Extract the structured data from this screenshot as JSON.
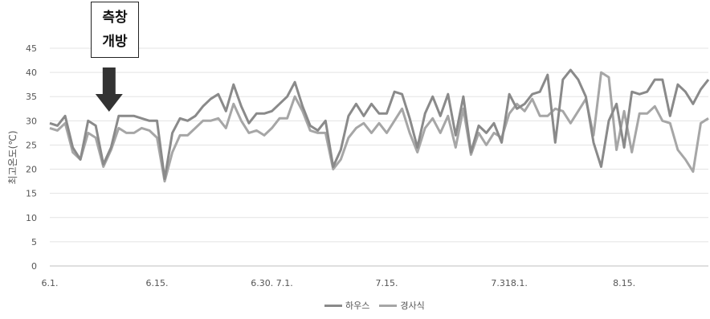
{
  "chart_data": {
    "type": "line",
    "title": "",
    "xlabel": "",
    "ylabel": "최고온도(℃)",
    "ylim": [
      0,
      45
    ],
    "yticks": [
      0,
      5,
      10,
      15,
      20,
      25,
      30,
      35,
      40,
      45
    ],
    "grid": true,
    "legend_position": "bottom",
    "x_tick_labels": [
      {
        "index": 0,
        "label": "6.1."
      },
      {
        "index": 14,
        "label": "6.15."
      },
      {
        "index": 29,
        "label": "6.30. 7.1."
      },
      {
        "index": 44,
        "label": "7.15."
      },
      {
        "index": 60,
        "label": "7.318.1."
      },
      {
        "index": 75,
        "label": "8.15."
      }
    ],
    "series": [
      {
        "name": "하우스",
        "color": "#8a8a8a",
        "values": [
          29.5,
          29,
          31,
          24.5,
          22,
          30,
          29,
          21,
          24.5,
          31,
          31,
          31,
          30.5,
          30,
          30,
          18,
          27.5,
          30.5,
          30,
          31,
          33,
          34.5,
          35.5,
          32,
          37.5,
          33,
          29.5,
          31.5,
          31.5,
          32,
          33.5,
          35,
          38,
          33,
          29,
          28,
          30,
          20.5,
          24,
          31,
          33.5,
          31,
          33.5,
          31.5,
          31.5,
          36,
          35.5,
          30.5,
          24.5,
          31.5,
          35,
          31,
          35.5,
          27,
          35,
          23.5,
          29,
          27.5,
          29.5,
          25.5,
          35.5,
          32.5,
          33.5,
          35.5,
          36,
          39.5,
          25.5,
          38.5,
          40.5,
          38.5,
          35,
          25.5,
          20.5,
          30,
          33.5,
          24.5,
          36,
          35.5,
          36,
          38.5,
          38.5,
          31,
          37.5,
          36,
          33.5,
          36.5,
          38.5
        ]
      },
      {
        "name": "경사식",
        "color": "#a6a6a6",
        "values": [
          28.5,
          28,
          29.5,
          23.5,
          22,
          27.5,
          26.5,
          20.5,
          24,
          28.5,
          27.5,
          27.5,
          28.5,
          28,
          26.5,
          17.5,
          23.5,
          27,
          27,
          28.5,
          30,
          30,
          30.5,
          28.5,
          33.5,
          30,
          27.5,
          28,
          27,
          28.5,
          30.5,
          30.5,
          35,
          32,
          28,
          27.5,
          27.5,
          20,
          22,
          26.5,
          28.5,
          29.5,
          27.5,
          29.5,
          27.5,
          30,
          32.5,
          27.5,
          23.5,
          28.5,
          30.5,
          27.5,
          31,
          24.5,
          32.5,
          23,
          27.5,
          25,
          27.5,
          26.5,
          31.5,
          33.5,
          32,
          34.5,
          31,
          31,
          32.5,
          32,
          29.5,
          32,
          34.5,
          27,
          40,
          39,
          24,
          32,
          23.5,
          31.5,
          31.5,
          33,
          30,
          29.5,
          24,
          22,
          19.5,
          29.5,
          30.5
        ]
      }
    ],
    "annotation": {
      "line1": "측창",
      "line2": "개방",
      "index": 9
    }
  }
}
